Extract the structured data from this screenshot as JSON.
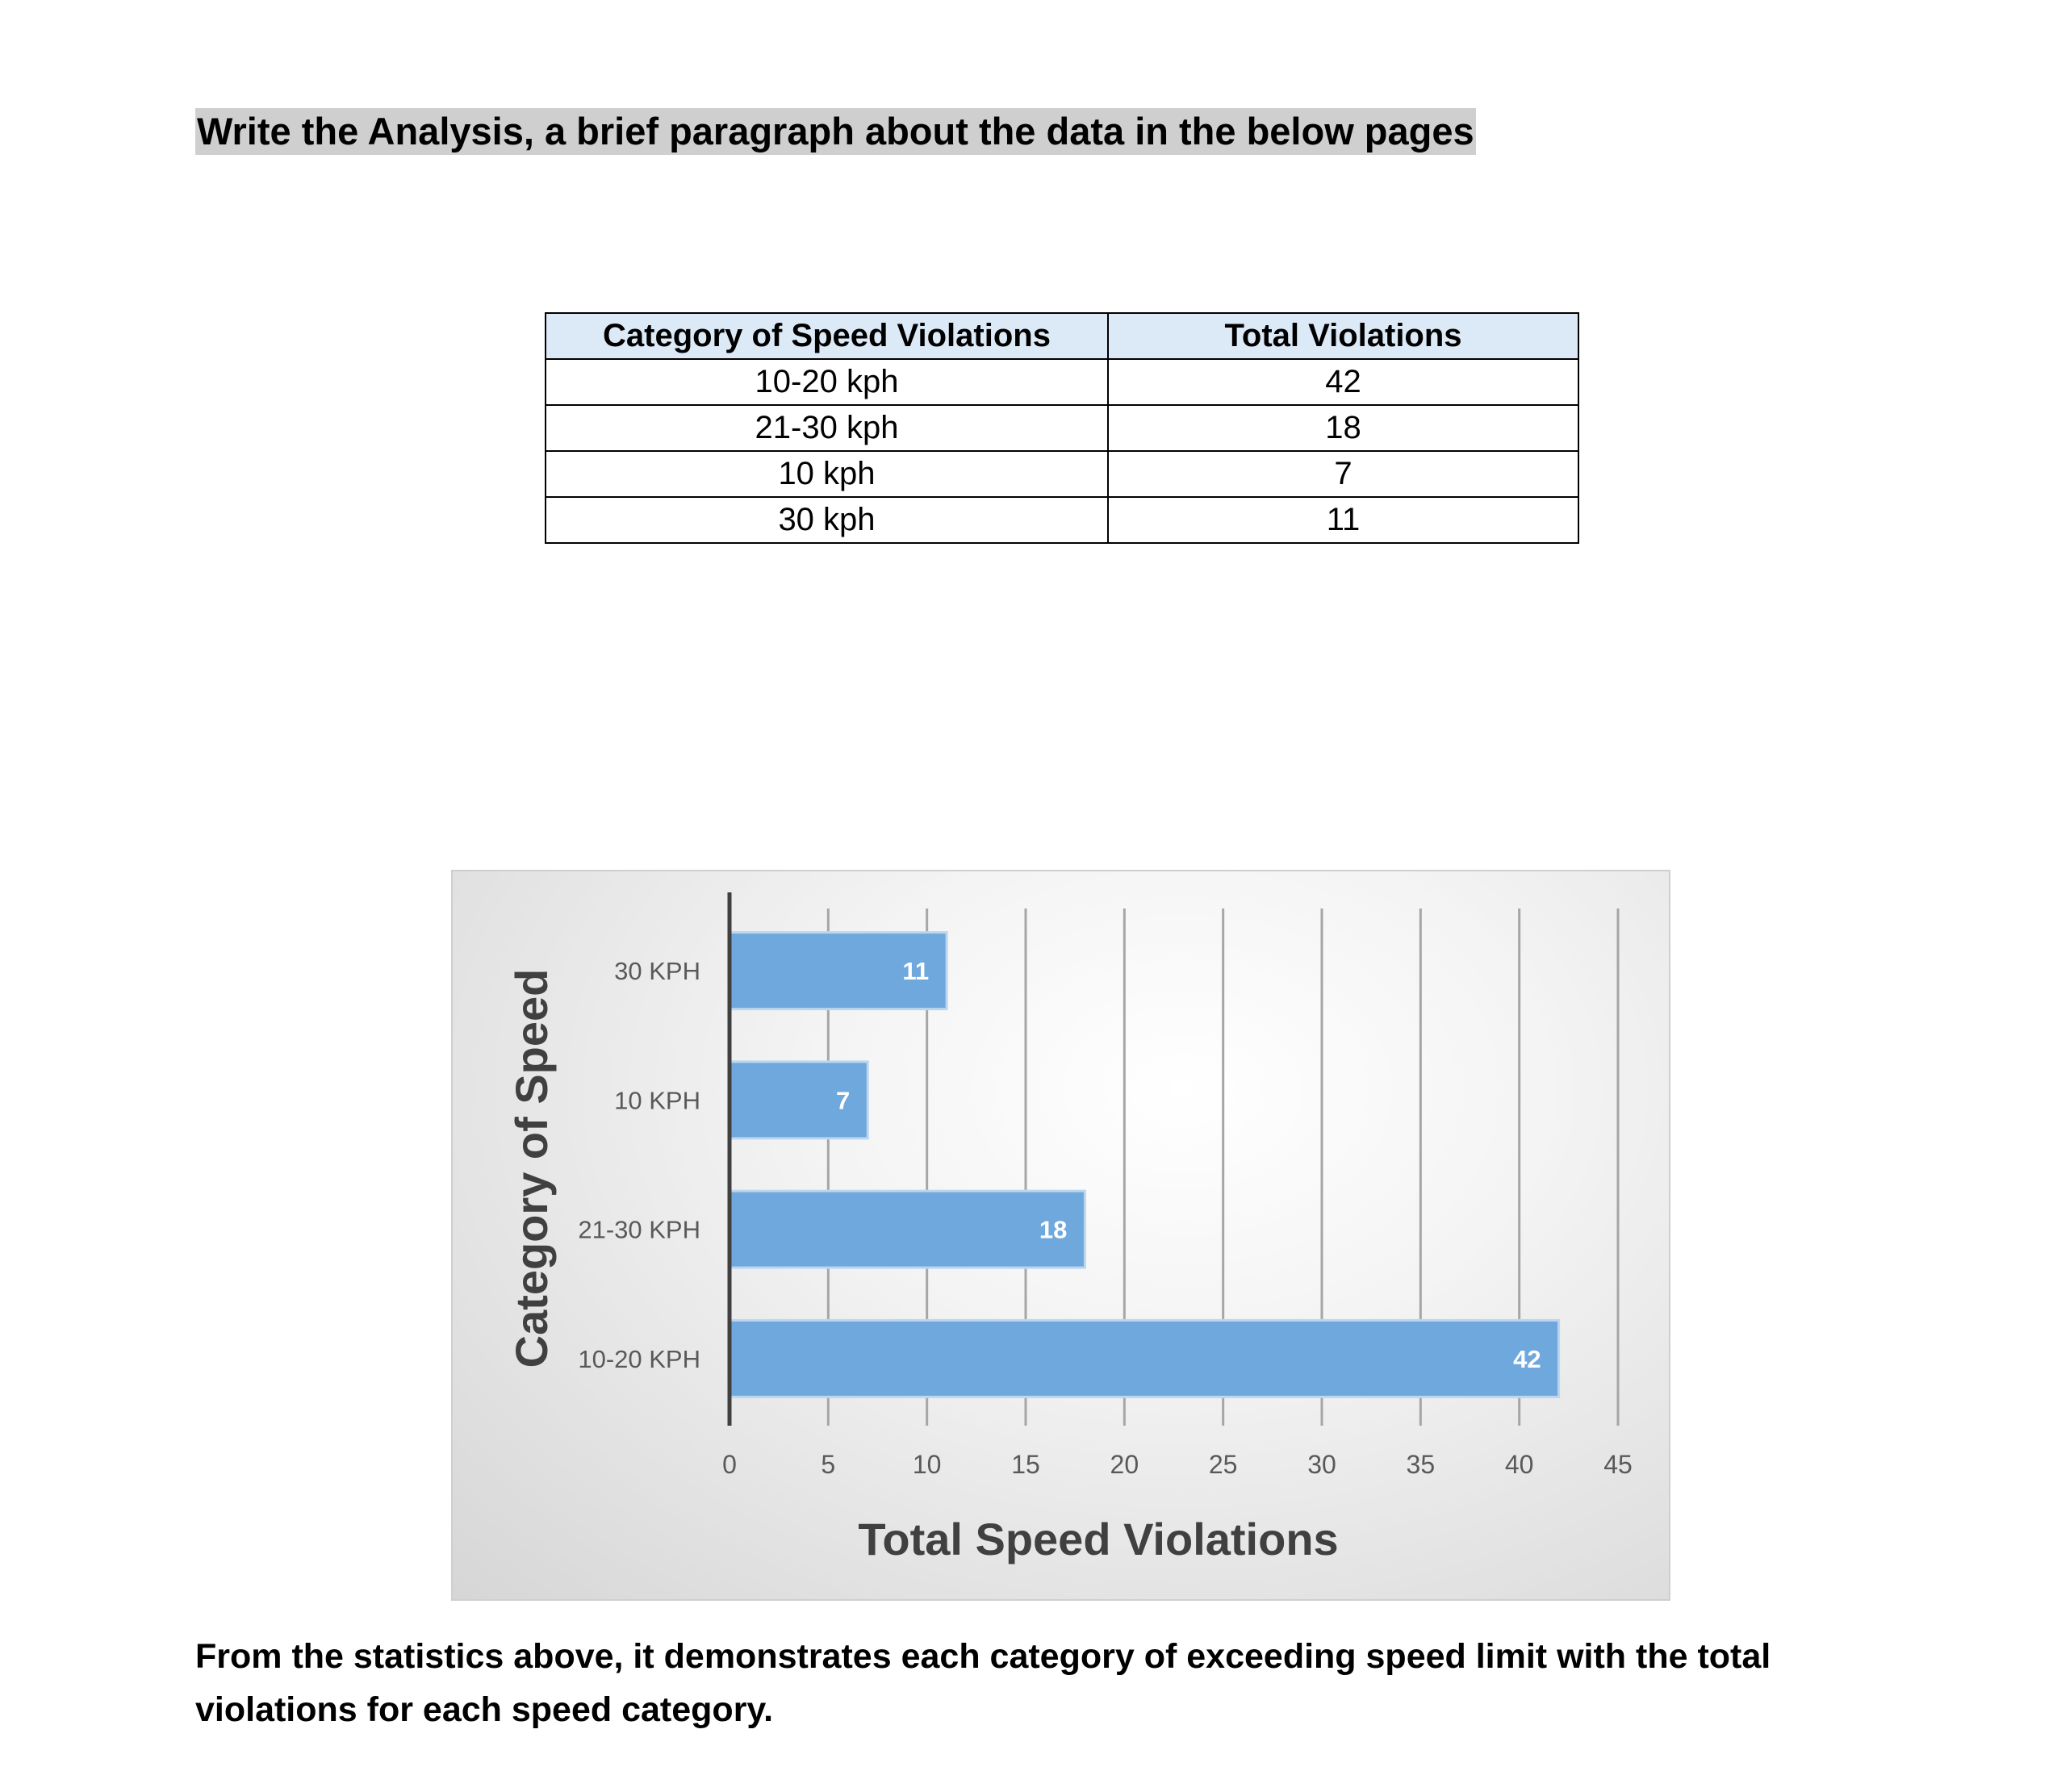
{
  "heading": "Write the Analysis, a brief paragraph about the data in the below pages",
  "table": {
    "headers": [
      "Category of Speed  Violations",
      "Total Violations"
    ],
    "rows": [
      [
        "10-20 kph",
        "42"
      ],
      [
        "21-30 kph",
        "18"
      ],
      [
        "10 kph",
        "7"
      ],
      [
        "30 kph",
        "11"
      ]
    ]
  },
  "chart_data": {
    "type": "bar",
    "orientation": "horizontal",
    "categories": [
      "10-20 KPH",
      "21-30 KPH",
      "10 KPH",
      "30 KPH"
    ],
    "values": [
      42,
      18,
      7,
      11
    ],
    "data_labels": [
      "42",
      "18",
      "7",
      "11"
    ],
    "xlabel": "Total Speed Violations",
    "ylabel": "Category of Speed",
    "xlim": [
      0,
      45
    ],
    "xticks": [
      "0",
      "5",
      "10",
      "15",
      "20",
      "25",
      "30",
      "35",
      "40",
      "45"
    ],
    "grid": "vertical",
    "bar_color": "#6fa8dc",
    "legend": "none"
  },
  "paragraph": "From the statistics above, it demonstrates each category of exceeding speed limit with the total violations for each speed category."
}
